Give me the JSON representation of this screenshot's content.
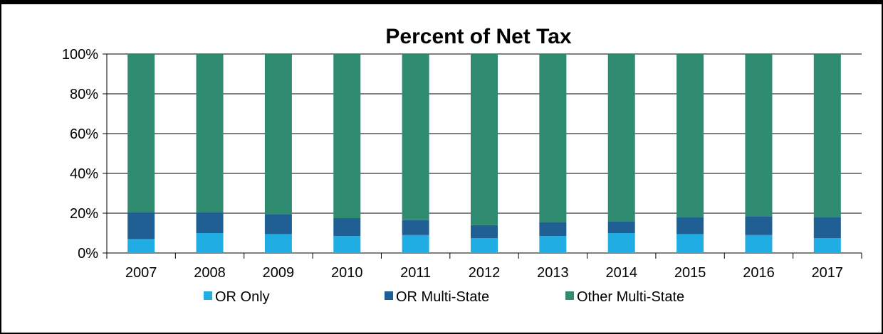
{
  "chart_data": {
    "type": "bar",
    "stacked": true,
    "title": "Percent of Net Tax",
    "categories": [
      "2007",
      "2008",
      "2009",
      "2010",
      "2011",
      "2012",
      "2013",
      "2014",
      "2015",
      "2016",
      "2017"
    ],
    "series": [
      {
        "name": "OR Only",
        "color": "#1fade4",
        "values": [
          7,
          10,
          9.5,
          8.5,
          9,
          7.5,
          8.5,
          10,
          9.5,
          9,
          7.5
        ]
      },
      {
        "name": "OR Multi-State",
        "color": "#1f5f93",
        "values": [
          13.5,
          10.5,
          10,
          9,
          7.5,
          6.5,
          7,
          6,
          8.5,
          9.5,
          10.5
        ]
      },
      {
        "name": "Other Multi-State",
        "color": "#2f8b6f",
        "values": [
          79.5,
          79.5,
          80.5,
          82.5,
          83.5,
          86,
          84.5,
          84,
          82,
          81.5,
          82
        ]
      }
    ],
    "ylim": [
      0,
      100
    ],
    "yticks": [
      "0%",
      "20%",
      "40%",
      "60%",
      "80%",
      "100%"
    ],
    "grid": true,
    "legend_position": "bottom"
  }
}
